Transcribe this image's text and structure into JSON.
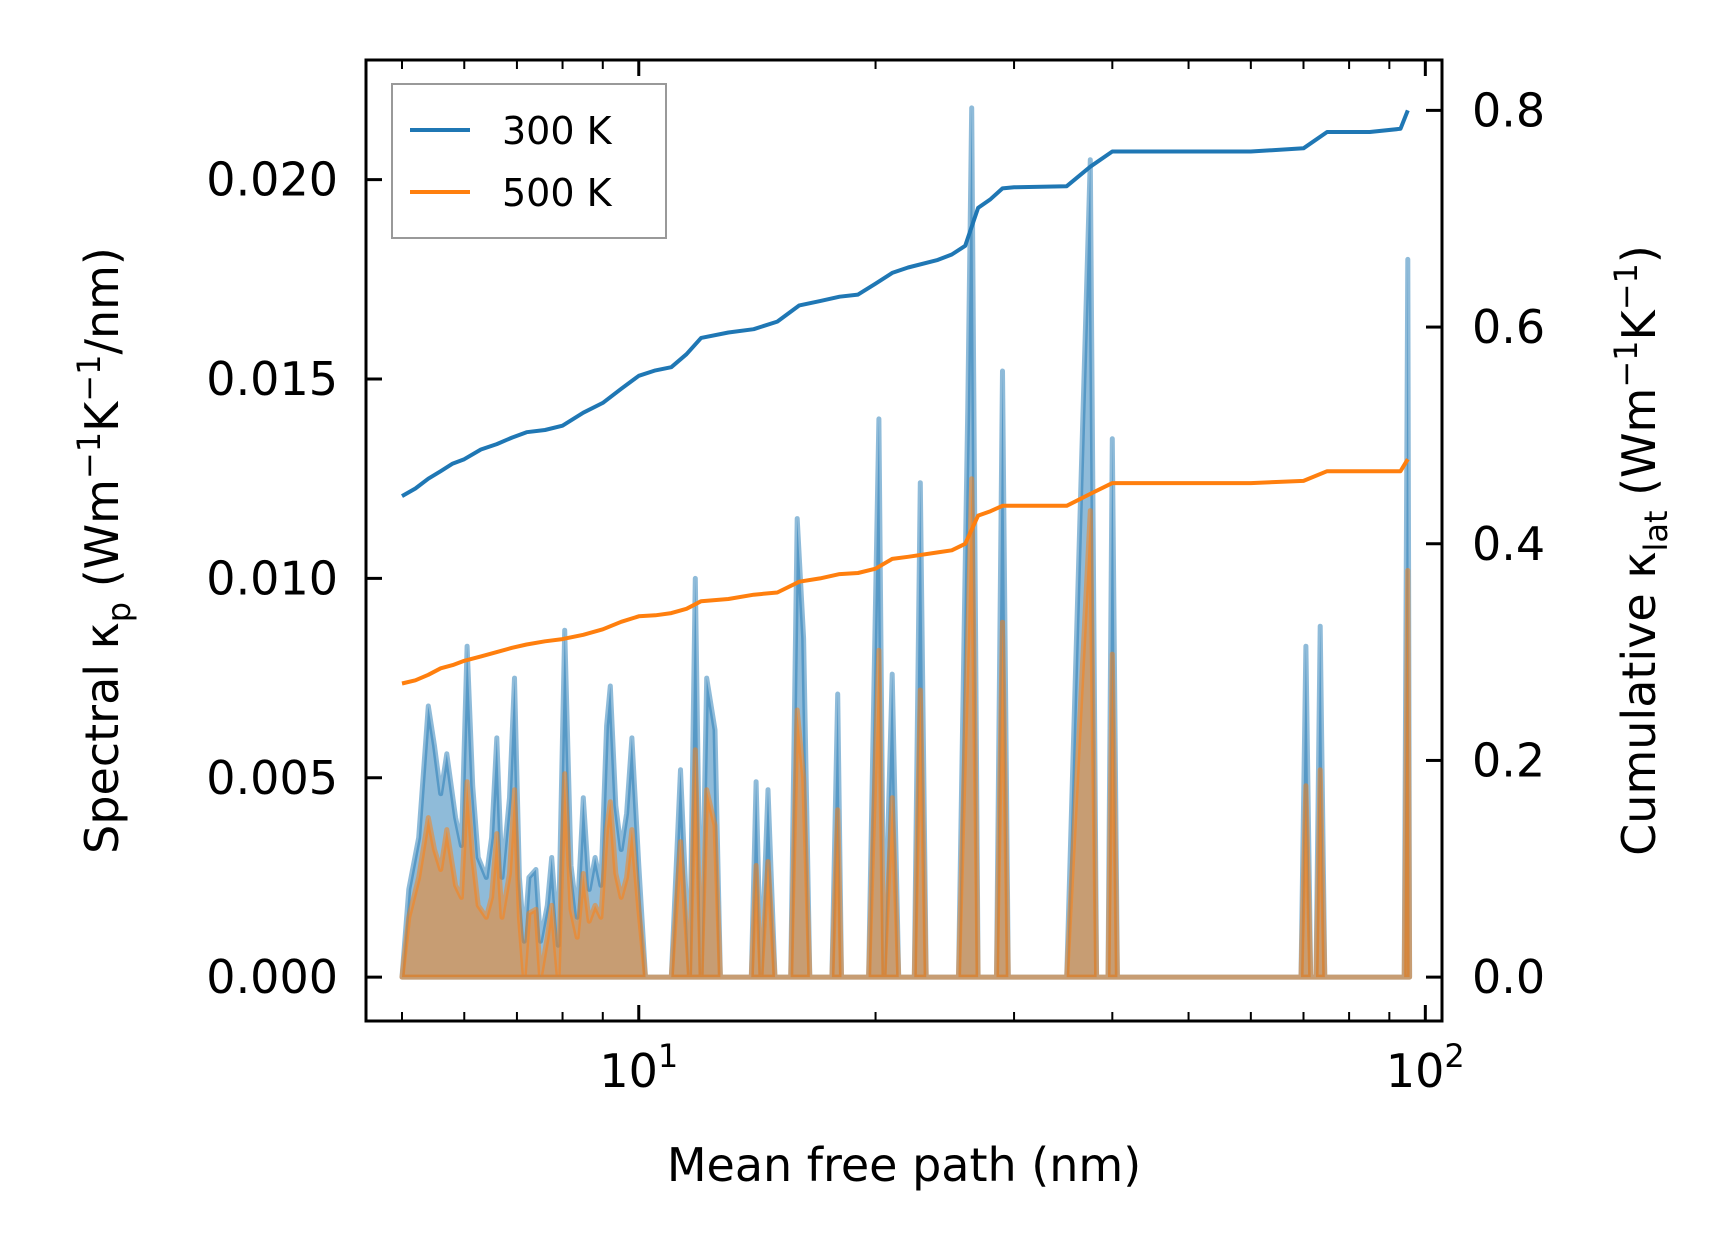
{
  "chart_data": {
    "type": "line",
    "xscale": "log",
    "xlabel": "Mean free path (nm)",
    "ylabel_left": {
      "prefix": "Spectral κ",
      "sub": "p",
      "unit_open": " (Wm",
      "exp1": "−1",
      "mid": "K",
      "exp2": "−1",
      "unit_close": "/nm)"
    },
    "ylabel_right": {
      "prefix": "Cumulative κ",
      "sub": "lat",
      "unit_open": " (Wm",
      "exp1": "−1",
      "mid": "K",
      "exp2": "−1",
      "unit_close": ")"
    },
    "xlim": [
      4.5,
      105
    ],
    "ylim_left": [
      -0.0011,
      0.023
    ],
    "ylim_right": [
      -0.0405,
      0.8465
    ],
    "x_ticks": [
      {
        "base": "10",
        "exp": "1",
        "value": 10
      },
      {
        "base": "10",
        "exp": "2",
        "value": 100
      }
    ],
    "x_minor_ticks": [
      5,
      6,
      7,
      8,
      9,
      20,
      30,
      40,
      50,
      60,
      70,
      80,
      90
    ],
    "y_left_ticks": [
      {
        "value": 0.0,
        "label": "0.000"
      },
      {
        "value": 0.005,
        "label": "0.005"
      },
      {
        "value": 0.01,
        "label": "0.010"
      },
      {
        "value": 0.015,
        "label": "0.015"
      },
      {
        "value": 0.02,
        "label": "0.020"
      }
    ],
    "y_right_ticks": [
      {
        "value": 0.0,
        "label": "0.0"
      },
      {
        "value": 0.2,
        "label": "0.2"
      },
      {
        "value": 0.4,
        "label": "0.4"
      },
      {
        "value": 0.6,
        "label": "0.6"
      },
      {
        "value": 0.8,
        "label": "0.8"
      }
    ],
    "legend_position": "top-left",
    "series": [
      {
        "name": "300 K",
        "color": "#1f77b4",
        "cumulative": [
          [
            5.0,
            0.444
          ],
          [
            5.2,
            0.451
          ],
          [
            5.4,
            0.46
          ],
          [
            5.6,
            0.467
          ],
          [
            5.8,
            0.474
          ],
          [
            6.0,
            0.478
          ],
          [
            6.3,
            0.487
          ],
          [
            6.6,
            0.492
          ],
          [
            6.9,
            0.498
          ],
          [
            7.2,
            0.503
          ],
          [
            7.6,
            0.505
          ],
          [
            8.0,
            0.509
          ],
          [
            8.5,
            0.521
          ],
          [
            9.0,
            0.53
          ],
          [
            9.5,
            0.543
          ],
          [
            10.0,
            0.555
          ],
          [
            10.5,
            0.56
          ],
          [
            11.0,
            0.563
          ],
          [
            11.5,
            0.575
          ],
          [
            12.0,
            0.59
          ],
          [
            13.0,
            0.595
          ],
          [
            14.0,
            0.598
          ],
          [
            15.0,
            0.605
          ],
          [
            16.0,
            0.62
          ],
          [
            17.0,
            0.624
          ],
          [
            18.0,
            0.628
          ],
          [
            19.0,
            0.63
          ],
          [
            20.0,
            0.64
          ],
          [
            21.0,
            0.65
          ],
          [
            22.0,
            0.655
          ],
          [
            24.0,
            0.662
          ],
          [
            25.0,
            0.667
          ],
          [
            26.0,
            0.675
          ],
          [
            27.0,
            0.71
          ],
          [
            28.0,
            0.718
          ],
          [
            29.0,
            0.728
          ],
          [
            30.0,
            0.729
          ],
          [
            35.0,
            0.73
          ],
          [
            37.5,
            0.748
          ],
          [
            40.0,
            0.762
          ],
          [
            50.0,
            0.762
          ],
          [
            60.0,
            0.762
          ],
          [
            70.0,
            0.765
          ],
          [
            75.0,
            0.78
          ],
          [
            85.0,
            0.78
          ],
          [
            93.0,
            0.783
          ],
          [
            95.0,
            0.8
          ]
        ],
        "spectral": [
          [
            5.0,
            0.0
          ],
          [
            5.1,
            0.0022
          ],
          [
            5.25,
            0.0035
          ],
          [
            5.4,
            0.0068
          ],
          [
            5.5,
            0.0058
          ],
          [
            5.6,
            0.0046
          ],
          [
            5.7,
            0.0056
          ],
          [
            5.85,
            0.004
          ],
          [
            5.95,
            0.0033
          ],
          [
            6.05,
            0.0083
          ],
          [
            6.15,
            0.0048
          ],
          [
            6.25,
            0.003
          ],
          [
            6.4,
            0.0025
          ],
          [
            6.5,
            0.0035
          ],
          [
            6.6,
            0.006
          ],
          [
            6.7,
            0.0025
          ],
          [
            6.85,
            0.0045
          ],
          [
            6.95,
            0.0075
          ],
          [
            7.05,
            0.0025
          ],
          [
            7.15,
            0.0009
          ],
          [
            7.25,
            0.0025
          ],
          [
            7.4,
            0.0027
          ],
          [
            7.5,
            0.0009
          ],
          [
            7.65,
            0.0018
          ],
          [
            7.75,
            0.003
          ],
          [
            7.9,
            0.0008
          ],
          [
            8.05,
            0.0087
          ],
          [
            8.2,
            0.0028
          ],
          [
            8.35,
            0.0015
          ],
          [
            8.5,
            0.0045
          ],
          [
            8.65,
            0.0022
          ],
          [
            8.8,
            0.003
          ],
          [
            8.95,
            0.0023
          ],
          [
            9.1,
            0.0063
          ],
          [
            9.2,
            0.0073
          ],
          [
            9.35,
            0.0043
          ],
          [
            9.5,
            0.0032
          ],
          [
            9.65,
            0.0041
          ],
          [
            9.8,
            0.006
          ],
          [
            10.0,
            0.0028
          ],
          [
            10.2,
            0.0
          ],
          [
            11.0,
            0.0
          ],
          [
            11.3,
            0.0052
          ],
          [
            11.6,
            0.0
          ],
          [
            11.8,
            0.01
          ],
          [
            12.0,
            0.0
          ],
          [
            12.2,
            0.0075
          ],
          [
            12.5,
            0.0062
          ],
          [
            12.7,
            0.0
          ],
          [
            13.9,
            0.0
          ],
          [
            14.1,
            0.0049
          ],
          [
            14.3,
            0.0
          ],
          [
            14.6,
            0.0047
          ],
          [
            14.9,
            0.0
          ],
          [
            15.6,
            0.0
          ],
          [
            15.9,
            0.0115
          ],
          [
            16.2,
            0.0085
          ],
          [
            16.5,
            0.0
          ],
          [
            17.6,
            0.0
          ],
          [
            17.9,
            0.0071
          ],
          [
            18.1,
            0.0
          ],
          [
            19.6,
            0.0
          ],
          [
            20.2,
            0.014
          ],
          [
            20.5,
            0.0
          ],
          [
            21.0,
            0.0076
          ],
          [
            21.4,
            0.0
          ],
          [
            22.4,
            0.0
          ],
          [
            22.8,
            0.0124
          ],
          [
            23.2,
            0.0
          ],
          [
            24.5,
            0.0
          ],
          [
            25.5,
            0.0
          ],
          [
            26.2,
            0.0143
          ],
          [
            26.5,
            0.0218
          ],
          [
            27.0,
            0.0
          ],
          [
            28.5,
            0.0
          ],
          [
            29.0,
            0.0152
          ],
          [
            29.5,
            0.0
          ],
          [
            35.0,
            0.0
          ],
          [
            37.5,
            0.0205
          ],
          [
            38.2,
            0.0
          ],
          [
            39.5,
            0.0
          ],
          [
            40.0,
            0.0135
          ],
          [
            40.6,
            0.0
          ],
          [
            69.5,
            0.0
          ],
          [
            70.5,
            0.0083
          ],
          [
            71.5,
            0.0
          ],
          [
            72.6,
            0.0
          ],
          [
            73.5,
            0.0088
          ],
          [
            74.5,
            0.0
          ],
          [
            94.0,
            0.0
          ],
          [
            95.0,
            0.018
          ],
          [
            95.5,
            0.0
          ]
        ]
      },
      {
        "name": "500 K",
        "color": "#ff7f0e",
        "cumulative": [
          [
            5.0,
            0.271
          ],
          [
            5.2,
            0.274
          ],
          [
            5.4,
            0.279
          ],
          [
            5.6,
            0.285
          ],
          [
            5.8,
            0.288
          ],
          [
            6.0,
            0.292
          ],
          [
            6.3,
            0.296
          ],
          [
            6.6,
            0.3
          ],
          [
            6.9,
            0.304
          ],
          [
            7.2,
            0.307
          ],
          [
            7.6,
            0.31
          ],
          [
            8.0,
            0.312
          ],
          [
            8.5,
            0.316
          ],
          [
            9.0,
            0.321
          ],
          [
            9.5,
            0.328
          ],
          [
            10.0,
            0.333
          ],
          [
            10.5,
            0.334
          ],
          [
            11.0,
            0.336
          ],
          [
            11.5,
            0.34
          ],
          [
            12.0,
            0.347
          ],
          [
            13.0,
            0.349
          ],
          [
            14.0,
            0.353
          ],
          [
            15.0,
            0.355
          ],
          [
            16.0,
            0.365
          ],
          [
            17.0,
            0.368
          ],
          [
            18.0,
            0.372
          ],
          [
            19.0,
            0.373
          ],
          [
            20.0,
            0.377
          ],
          [
            21.0,
            0.386
          ],
          [
            22.0,
            0.388
          ],
          [
            24.0,
            0.392
          ],
          [
            25.0,
            0.394
          ],
          [
            26.0,
            0.4
          ],
          [
            27.0,
            0.426
          ],
          [
            28.0,
            0.43
          ],
          [
            29.0,
            0.435
          ],
          [
            30.0,
            0.435
          ],
          [
            35.0,
            0.435
          ],
          [
            37.5,
            0.446
          ],
          [
            40.0,
            0.456
          ],
          [
            50.0,
            0.456
          ],
          [
            60.0,
            0.456
          ],
          [
            70.0,
            0.458
          ],
          [
            75.0,
            0.467
          ],
          [
            85.0,
            0.467
          ],
          [
            93.0,
            0.467
          ],
          [
            95.0,
            0.478
          ]
        ],
        "spectral": [
          [
            5.0,
            0.0
          ],
          [
            5.1,
            0.0015
          ],
          [
            5.25,
            0.0025
          ],
          [
            5.4,
            0.004
          ],
          [
            5.5,
            0.0032
          ],
          [
            5.6,
            0.0027
          ],
          [
            5.7,
            0.0037
          ],
          [
            5.85,
            0.0023
          ],
          [
            5.95,
            0.002
          ],
          [
            6.05,
            0.0049
          ],
          [
            6.15,
            0.003
          ],
          [
            6.25,
            0.0018
          ],
          [
            6.4,
            0.0015
          ],
          [
            6.5,
            0.002
          ],
          [
            6.6,
            0.0036
          ],
          [
            6.7,
            0.0015
          ],
          [
            6.85,
            0.0026
          ],
          [
            6.95,
            0.0047
          ],
          [
            7.05,
            0.0015
          ],
          [
            7.15,
            0.0
          ],
          [
            7.25,
            0.0016
          ],
          [
            7.4,
            0.0017
          ],
          [
            7.5,
            0.0
          ],
          [
            7.65,
            0.001
          ],
          [
            7.75,
            0.0018
          ],
          [
            7.9,
            0.0
          ],
          [
            8.05,
            0.0051
          ],
          [
            8.2,
            0.0017
          ],
          [
            8.35,
            0.001
          ],
          [
            8.5,
            0.0026
          ],
          [
            8.65,
            0.0014
          ],
          [
            8.8,
            0.0018
          ],
          [
            8.95,
            0.0015
          ],
          [
            9.1,
            0.0037
          ],
          [
            9.2,
            0.0044
          ],
          [
            9.35,
            0.0026
          ],
          [
            9.5,
            0.002
          ],
          [
            9.65,
            0.0025
          ],
          [
            9.8,
            0.0037
          ],
          [
            10.0,
            0.0017
          ],
          [
            10.2,
            0.0
          ],
          [
            11.0,
            0.0
          ],
          [
            11.3,
            0.0034
          ],
          [
            11.6,
            0.0
          ],
          [
            11.8,
            0.0057
          ],
          [
            12.0,
            0.0
          ],
          [
            12.2,
            0.0047
          ],
          [
            12.5,
            0.0038
          ],
          [
            12.7,
            0.0
          ],
          [
            13.9,
            0.0
          ],
          [
            14.1,
            0.0028
          ],
          [
            14.3,
            0.0
          ],
          [
            14.6,
            0.0029
          ],
          [
            14.9,
            0.0
          ],
          [
            15.6,
            0.0
          ],
          [
            15.9,
            0.0067
          ],
          [
            16.2,
            0.005
          ],
          [
            16.5,
            0.0
          ],
          [
            17.6,
            0.0
          ],
          [
            17.9,
            0.0042
          ],
          [
            18.1,
            0.0
          ],
          [
            19.6,
            0.0
          ],
          [
            20.2,
            0.0082
          ],
          [
            20.5,
            0.0
          ],
          [
            21.0,
            0.0045
          ],
          [
            21.4,
            0.0
          ],
          [
            22.4,
            0.0
          ],
          [
            22.8,
            0.0072
          ],
          [
            23.2,
            0.0
          ],
          [
            24.5,
            0.0
          ],
          [
            25.5,
            0.0
          ],
          [
            26.2,
            0.0085
          ],
          [
            26.5,
            0.0125
          ],
          [
            27.0,
            0.0
          ],
          [
            28.5,
            0.0
          ],
          [
            29.0,
            0.0089
          ],
          [
            29.5,
            0.0
          ],
          [
            35.0,
            0.0
          ],
          [
            37.5,
            0.0117
          ],
          [
            38.2,
            0.0
          ],
          [
            39.5,
            0.0
          ],
          [
            40.0,
            0.0081
          ],
          [
            40.6,
            0.0
          ],
          [
            69.5,
            0.0
          ],
          [
            70.5,
            0.0048
          ],
          [
            71.5,
            0.0
          ],
          [
            72.6,
            0.0
          ],
          [
            73.5,
            0.0052
          ],
          [
            74.5,
            0.0
          ],
          [
            94.0,
            0.0
          ],
          [
            95.0,
            0.0102
          ],
          [
            95.5,
            0.0
          ]
        ]
      }
    ]
  }
}
